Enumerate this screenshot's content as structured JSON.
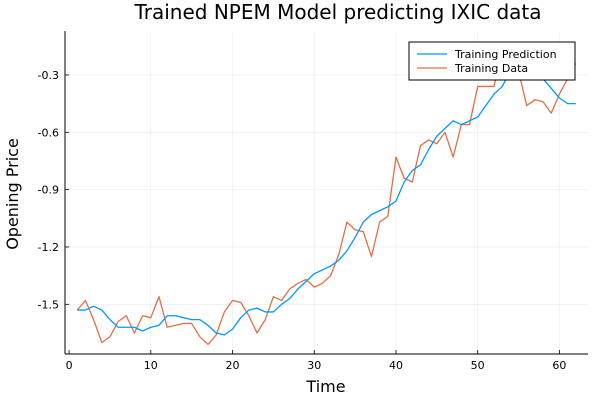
{
  "chart_data": {
    "type": "line",
    "title": "Trained NPEM Model predicting IXIC data",
    "xlabel": "Time",
    "ylabel": "Opening Price",
    "xlim": [
      -0.5,
      63.5
    ],
    "ylim": [
      -1.76,
      -0.07
    ],
    "xticks": [
      0,
      10,
      20,
      30,
      40,
      50,
      60
    ],
    "yticks": [
      -1.5,
      -1.2,
      -0.9,
      -0.6,
      -0.3
    ],
    "ytick_labels": [
      "-1.5",
      "-1.2",
      "-0.9",
      "-0.6",
      "-0.3"
    ],
    "grid": true,
    "legend_position": "top-right",
    "series": [
      {
        "name": "Training Prediction",
        "color": "#009AFA",
        "x": [
          1,
          2,
          3,
          4,
          5,
          6,
          7,
          8,
          9,
          10,
          11,
          12,
          13,
          14,
          15,
          16,
          17,
          18,
          19,
          20,
          21,
          22,
          23,
          24,
          25,
          26,
          27,
          28,
          29,
          30,
          31,
          32,
          33,
          34,
          35,
          36,
          37,
          38,
          39,
          40,
          41,
          42,
          43,
          44,
          45,
          46,
          47,
          48,
          49,
          50,
          51,
          52,
          53,
          54,
          55,
          56,
          57,
          58,
          59,
          60,
          61,
          62
        ],
        "y": [
          -1.53,
          -1.53,
          -1.51,
          -1.53,
          -1.58,
          -1.62,
          -1.62,
          -1.62,
          -1.64,
          -1.62,
          -1.61,
          -1.56,
          -1.56,
          -1.57,
          -1.58,
          -1.58,
          -1.61,
          -1.65,
          -1.66,
          -1.63,
          -1.57,
          -1.53,
          -1.52,
          -1.54,
          -1.54,
          -1.5,
          -1.47,
          -1.42,
          -1.38,
          -1.34,
          -1.32,
          -1.3,
          -1.27,
          -1.22,
          -1.15,
          -1.07,
          -1.03,
          -1.01,
          -0.99,
          -0.96,
          -0.86,
          -0.8,
          -0.77,
          -0.69,
          -0.62,
          -0.58,
          -0.54,
          -0.56,
          -0.54,
          -0.52,
          -0.46,
          -0.4,
          -0.36,
          -0.28,
          -0.22,
          -0.24,
          -0.28,
          -0.32,
          -0.37,
          -0.42,
          -0.45,
          -0.45
        ]
      },
      {
        "name": "Training Data",
        "color": "#E26F46",
        "x": [
          1,
          2,
          3,
          4,
          5,
          6,
          7,
          8,
          9,
          10,
          11,
          12,
          13,
          14,
          15,
          16,
          17,
          18,
          19,
          20,
          21,
          22,
          23,
          24,
          25,
          26,
          27,
          28,
          29,
          30,
          31,
          32,
          33,
          34,
          35,
          36,
          37,
          38,
          39,
          40,
          41,
          42,
          43,
          44,
          45,
          46,
          47,
          48,
          49,
          50,
          51,
          52,
          53,
          54,
          55,
          56,
          57,
          58,
          59,
          60,
          61,
          62
        ],
        "y": [
          -1.53,
          -1.48,
          -1.58,
          -1.7,
          -1.67,
          -1.59,
          -1.56,
          -1.65,
          -1.56,
          -1.57,
          -1.46,
          -1.62,
          -1.61,
          -1.6,
          -1.6,
          -1.67,
          -1.71,
          -1.66,
          -1.54,
          -1.48,
          -1.49,
          -1.56,
          -1.65,
          -1.58,
          -1.46,
          -1.48,
          -1.42,
          -1.39,
          -1.37,
          -1.41,
          -1.39,
          -1.35,
          -1.24,
          -1.07,
          -1.11,
          -1.12,
          -1.25,
          -1.07,
          -1.04,
          -0.73,
          -0.84,
          -0.86,
          -0.67,
          -0.64,
          -0.66,
          -0.6,
          -0.73,
          -0.56,
          -0.56,
          -0.36,
          -0.36,
          -0.36,
          -0.16,
          -0.3,
          -0.28,
          -0.46,
          -0.43,
          -0.44,
          -0.5,
          -0.4,
          -0.32,
          -0.24
        ]
      }
    ]
  }
}
